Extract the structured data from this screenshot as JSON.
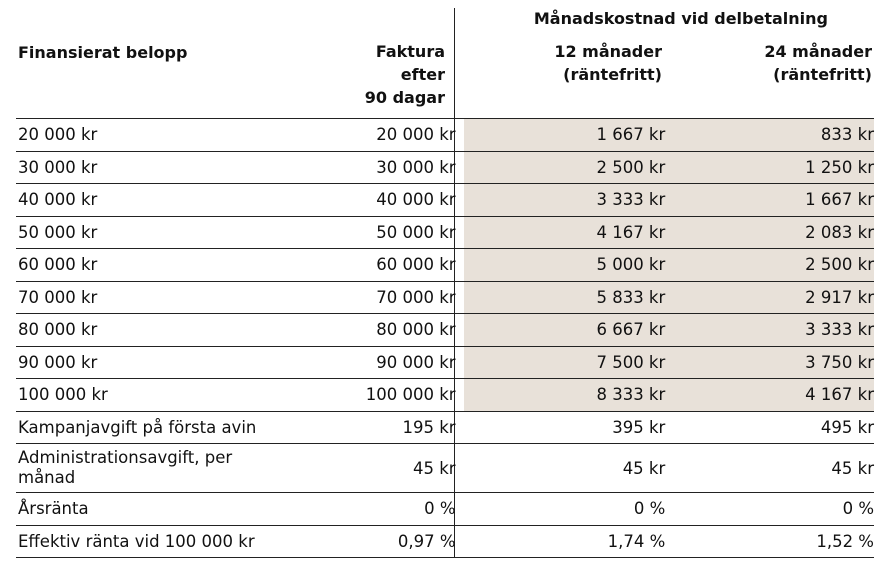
{
  "header": {
    "group_title": "Månadskostnad vid delbetalning",
    "col1": "Finansierat belopp",
    "col2_lines": [
      "Faktura",
      "efter",
      "90 dagar"
    ],
    "col3_lines": [
      "12 månader",
      "(räntefritt)"
    ],
    "col4_lines": [
      "24 månader",
      "(räntefritt)"
    ]
  },
  "shade_color": "#e8e1d9",
  "rows": [
    {
      "label": "20 000 kr",
      "faktura": "20 000 kr",
      "m12": "1 667 kr",
      "m24": "833 kr"
    },
    {
      "label": "30 000 kr",
      "faktura": "30 000 kr",
      "m12": "2 500 kr",
      "m24": "1 250 kr"
    },
    {
      "label": "40 000 kr",
      "faktura": "40 000 kr",
      "m12": "3 333 kr",
      "m24": "1 667 kr"
    },
    {
      "label": "50 000 kr",
      "faktura": "50 000 kr",
      "m12": "4 167 kr",
      "m24": "2 083 kr"
    },
    {
      "label": "60 000 kr",
      "faktura": "60 000 kr",
      "m12": "5 000 kr",
      "m24": "2 500 kr"
    },
    {
      "label": "70 000 kr",
      "faktura": "70 000 kr",
      "m12": "5 833 kr",
      "m24": "2 917 kr"
    },
    {
      "label": "80 000 kr",
      "faktura": "80 000 kr",
      "m12": "6 667 kr",
      "m24": "3 333 kr"
    },
    {
      "label": "90 000 kr",
      "faktura": "90 000 kr",
      "m12": "7 500 kr",
      "m24": "3 750 kr"
    },
    {
      "label": "100 000 kr",
      "faktura": "100 000 kr",
      "m12": "8 333 kr",
      "m24": "4 167 kr"
    }
  ],
  "fees": [
    {
      "label": "Kampanjavgift på första avin",
      "faktura": "195 kr",
      "m12": "395 kr",
      "m24": "495 kr"
    },
    {
      "label": "Administrationsavgift, per månad",
      "faktura": "45 kr",
      "m12": "45 kr",
      "m24": "45 kr"
    },
    {
      "label": "Årsränta",
      "faktura": "0 %",
      "m12": "0 %",
      "m24": "0 %"
    },
    {
      "label": "Effektiv ränta vid 100 000 kr",
      "faktura": "0,97 %",
      "m12": "1,74 %",
      "m24": "1,52 %"
    }
  ]
}
